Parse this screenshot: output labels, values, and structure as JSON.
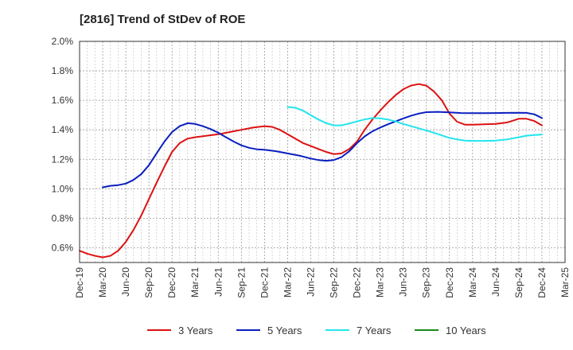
{
  "chart_data": {
    "type": "line",
    "title": "[2816]  Trend of StDev of ROE",
    "xlabel": "",
    "ylabel": "",
    "ylim": [
      0.5,
      2.0
    ],
    "y_ticks": [
      "0.6%",
      "0.8%",
      "1.0%",
      "1.2%",
      "1.4%",
      "1.6%",
      "1.8%",
      "2.0%"
    ],
    "y_tick_values": [
      0.6,
      0.8,
      1.0,
      1.2,
      1.4,
      1.6,
      1.8,
      2.0
    ],
    "x_ticks": [
      "Dec-19",
      "Mar-20",
      "Jun-20",
      "Sep-20",
      "Dec-20",
      "Mar-21",
      "Jun-21",
      "Sep-21",
      "Dec-21",
      "Mar-22",
      "Jun-22",
      "Sep-22",
      "Dec-22",
      "Mar-23",
      "Jun-23",
      "Sep-23",
      "Dec-23",
      "Mar-24",
      "Jun-24",
      "Sep-24",
      "Dec-24",
      "Mar-25"
    ],
    "grid": true,
    "legend_position": "bottom",
    "series": [
      {
        "name": "3 Years",
        "color": "#dd1111",
        "points": [
          [
            0,
            0.58
          ],
          [
            0.33,
            0.56
          ],
          [
            0.67,
            0.545
          ],
          [
            1,
            0.535
          ],
          [
            1.33,
            0.545
          ],
          [
            1.67,
            0.58
          ],
          [
            2,
            0.64
          ],
          [
            2.33,
            0.72
          ],
          [
            2.67,
            0.82
          ],
          [
            3,
            0.93
          ],
          [
            3.33,
            1.04
          ],
          [
            3.67,
            1.15
          ],
          [
            4,
            1.25
          ],
          [
            4.33,
            1.31
          ],
          [
            4.67,
            1.34
          ],
          [
            5,
            1.35
          ],
          [
            5.5,
            1.36
          ],
          [
            6,
            1.37
          ],
          [
            6.5,
            1.385
          ],
          [
            7,
            1.4
          ],
          [
            7.5,
            1.415
          ],
          [
            8,
            1.425
          ],
          [
            8.33,
            1.42
          ],
          [
            8.67,
            1.4
          ],
          [
            9,
            1.37
          ],
          [
            9.33,
            1.34
          ],
          [
            9.67,
            1.31
          ],
          [
            10,
            1.29
          ],
          [
            10.33,
            1.27
          ],
          [
            10.67,
            1.25
          ],
          [
            11,
            1.235
          ],
          [
            11.33,
            1.24
          ],
          [
            11.67,
            1.27
          ],
          [
            12,
            1.32
          ],
          [
            12.33,
            1.4
          ],
          [
            12.67,
            1.47
          ],
          [
            13,
            1.53
          ],
          [
            13.33,
            1.585
          ],
          [
            13.67,
            1.635
          ],
          [
            14,
            1.675
          ],
          [
            14.33,
            1.7
          ],
          [
            14.67,
            1.71
          ],
          [
            15,
            1.7
          ],
          [
            15.33,
            1.66
          ],
          [
            15.67,
            1.6
          ],
          [
            16,
            1.51
          ],
          [
            16.33,
            1.455
          ],
          [
            16.67,
            1.435
          ],
          [
            17,
            1.435
          ],
          [
            17.5,
            1.438
          ],
          [
            18,
            1.44
          ],
          [
            18.5,
            1.45
          ],
          [
            19,
            1.475
          ],
          [
            19.33,
            1.475
          ],
          [
            19.67,
            1.46
          ],
          [
            20,
            1.43
          ]
        ]
      },
      {
        "name": "5 Years",
        "color": "#0a1fbf",
        "points": [
          [
            1,
            1.01
          ],
          [
            1.33,
            1.02
          ],
          [
            1.67,
            1.025
          ],
          [
            2,
            1.035
          ],
          [
            2.33,
            1.06
          ],
          [
            2.67,
            1.1
          ],
          [
            3,
            1.16
          ],
          [
            3.33,
            1.24
          ],
          [
            3.67,
            1.32
          ],
          [
            4,
            1.385
          ],
          [
            4.33,
            1.425
          ],
          [
            4.67,
            1.445
          ],
          [
            5,
            1.44
          ],
          [
            5.33,
            1.425
          ],
          [
            5.67,
            1.405
          ],
          [
            6,
            1.38
          ],
          [
            6.33,
            1.35
          ],
          [
            6.67,
            1.32
          ],
          [
            7,
            1.295
          ],
          [
            7.33,
            1.278
          ],
          [
            7.67,
            1.268
          ],
          [
            8,
            1.265
          ],
          [
            8.5,
            1.255
          ],
          [
            9,
            1.24
          ],
          [
            9.5,
            1.225
          ],
          [
            10,
            1.205
          ],
          [
            10.33,
            1.195
          ],
          [
            10.67,
            1.19
          ],
          [
            11,
            1.195
          ],
          [
            11.33,
            1.215
          ],
          [
            11.67,
            1.255
          ],
          [
            12,
            1.31
          ],
          [
            12.33,
            1.355
          ],
          [
            12.67,
            1.39
          ],
          [
            13,
            1.415
          ],
          [
            13.33,
            1.437
          ],
          [
            13.67,
            1.457
          ],
          [
            14,
            1.477
          ],
          [
            14.33,
            1.495
          ],
          [
            14.67,
            1.51
          ],
          [
            15,
            1.52
          ],
          [
            15.5,
            1.522
          ],
          [
            16,
            1.518
          ],
          [
            16.5,
            1.514
          ],
          [
            17,
            1.513
          ],
          [
            17.5,
            1.513
          ],
          [
            18,
            1.514
          ],
          [
            18.5,
            1.515
          ],
          [
            19,
            1.516
          ],
          [
            19.33,
            1.515
          ],
          [
            19.67,
            1.505
          ],
          [
            20,
            1.48
          ]
        ]
      },
      {
        "name": "7 Years",
        "color": "#22e5ee",
        "points": [
          [
            9,
            1.555
          ],
          [
            9.33,
            1.55
          ],
          [
            9.67,
            1.53
          ],
          [
            10,
            1.5
          ],
          [
            10.33,
            1.47
          ],
          [
            10.67,
            1.445
          ],
          [
            11,
            1.43
          ],
          [
            11.33,
            1.43
          ],
          [
            11.67,
            1.443
          ],
          [
            12,
            1.457
          ],
          [
            12.33,
            1.47
          ],
          [
            12.67,
            1.48
          ],
          [
            13,
            1.478
          ],
          [
            13.33,
            1.47
          ],
          [
            13.67,
            1.457
          ],
          [
            14,
            1.44
          ],
          [
            14.33,
            1.425
          ],
          [
            14.67,
            1.41
          ],
          [
            15,
            1.395
          ],
          [
            15.33,
            1.38
          ],
          [
            15.67,
            1.362
          ],
          [
            16,
            1.345
          ],
          [
            16.33,
            1.335
          ],
          [
            16.67,
            1.327
          ],
          [
            17,
            1.325
          ],
          [
            17.5,
            1.325
          ],
          [
            18,
            1.327
          ],
          [
            18.5,
            1.335
          ],
          [
            19,
            1.35
          ],
          [
            19.33,
            1.36
          ],
          [
            19.67,
            1.365
          ],
          [
            20,
            1.368
          ]
        ]
      },
      {
        "name": "10 Years",
        "color": "#1a8a1a",
        "points": []
      }
    ]
  }
}
